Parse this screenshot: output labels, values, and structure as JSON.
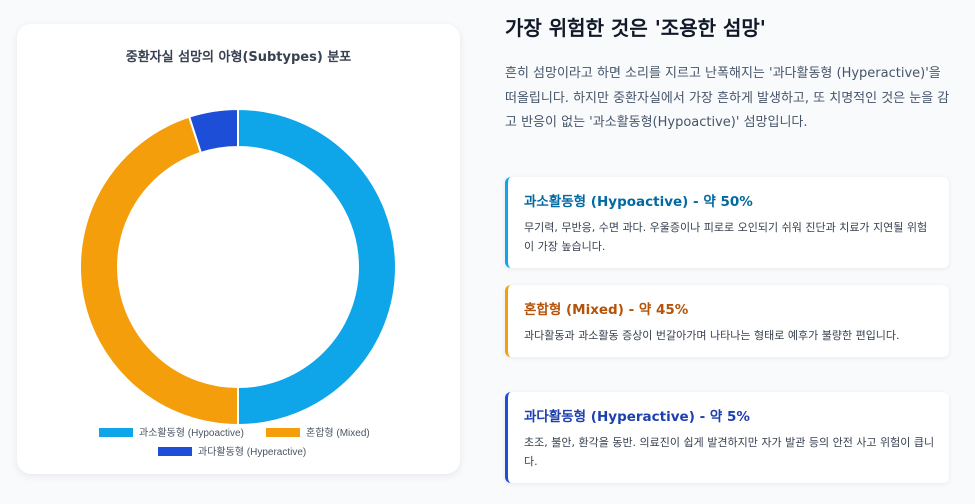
{
  "chart_data": {
    "type": "doughnut",
    "title": "중환자실 섬망의 아형(Subtypes) 분포",
    "categories": [
      "과소활동형 (Hypoactive)",
      "혼합형 (Mixed)",
      "과다활동형 (Hyperactive)"
    ],
    "values": [
      50,
      45,
      5
    ],
    "colors": [
      "#0ea5e9",
      "#f59e0b",
      "#1d4ed8"
    ],
    "legend_position": "bottom"
  },
  "heading": "가장 위험한 것은 '조용한 섬망'",
  "intro": "흔히 섬망이라고 하면 소리를 지르고 난폭해지는 '과다활동형 (Hyperactive)'을 떠올립니다. 하지만 중환자실에서 가장 흔하게 발생하고, 또 치명적인 것은 눈을 감고 반응이 없는 '과소활동형(Hypoactive)' 섬망입니다.",
  "cards": [
    {
      "title": "과소활동형 (Hypoactive) - 약 50%",
      "desc": "무기력, 무반응, 수면 과다. 우울증이나 피로로 오인되기 쉬워 진단과 치료가 지연될 위험이 가장 높습니다.",
      "color": "#0369a1",
      "border": "#0ea5e9"
    },
    {
      "title": "혼합형 (Mixed) - 약 45%",
      "desc": "과다활동과 과소활동 증상이 번갈아가며 나타나는 형태로 예후가 불량한 편입니다.",
      "color": "#b45309",
      "border": "#f59e0b"
    },
    {
      "title": "과다활동형 (Hyperactive) - 약 5%",
      "desc": "초조, 불안, 환각을 동반. 의료진이 쉽게 발견하지만 자가 발관 등의 안전 사고 위험이 큽니다.",
      "color": "#1e40af",
      "border": "#1d4ed8"
    }
  ]
}
